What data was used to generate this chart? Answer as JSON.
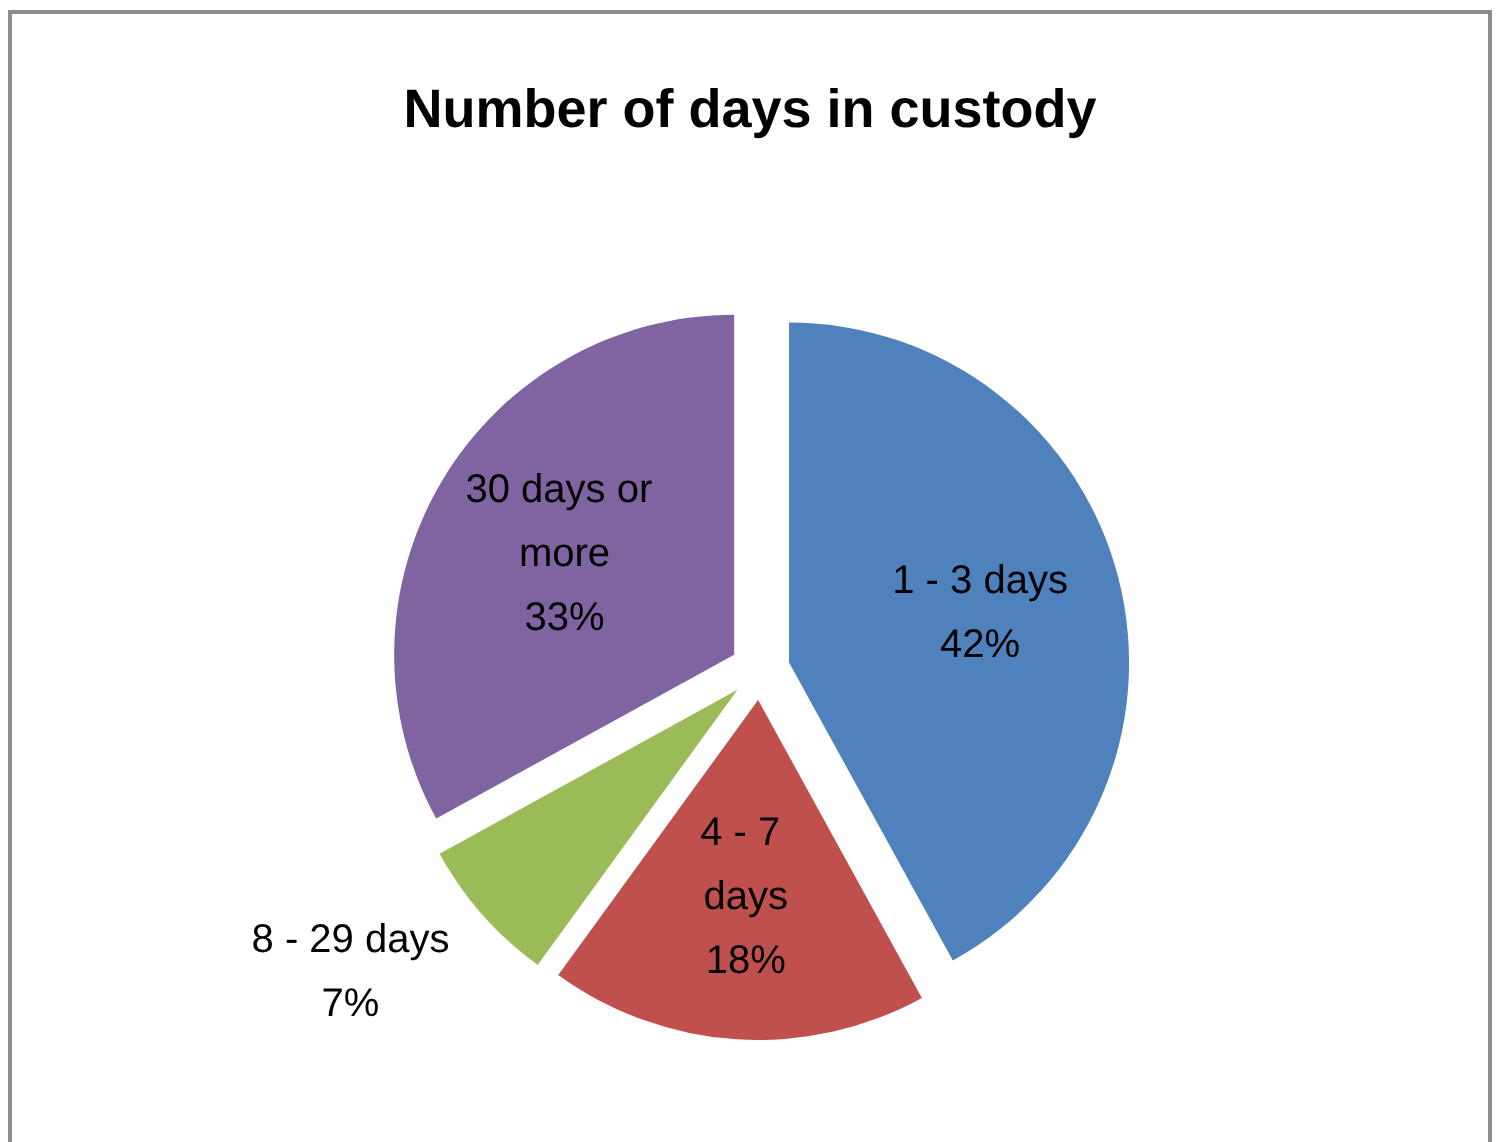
{
  "chart_data": {
    "type": "pie",
    "title": "Number of days in custody",
    "categories": [
      "1 - 3 days",
      "4 - 7 days",
      "8 - 29 days",
      "30 days or more"
    ],
    "values": [
      42,
      18,
      7,
      33
    ],
    "value_labels": [
      "42%",
      "18%",
      "7%",
      "33%"
    ],
    "colors": [
      "#4f81bd",
      "#c0504d",
      "#9bbb59",
      "#8064a2"
    ]
  }
}
